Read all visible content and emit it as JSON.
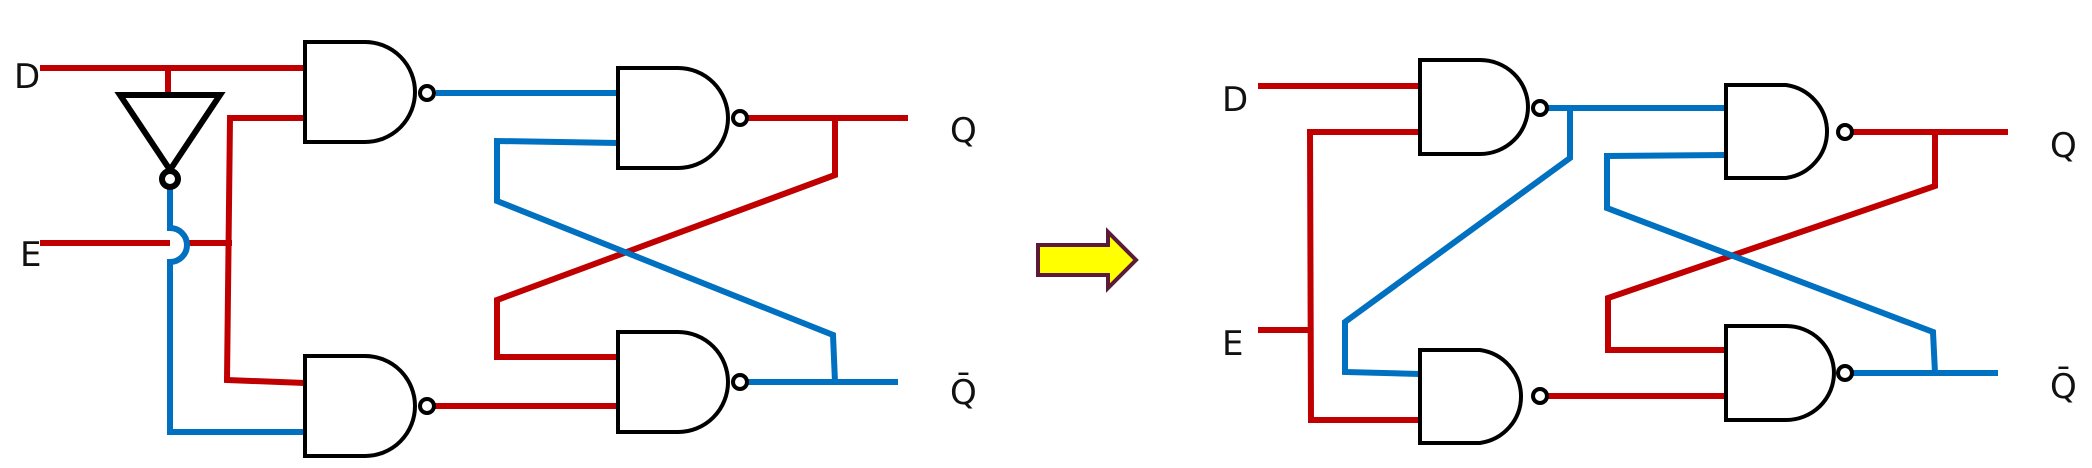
{
  "colors": {
    "red": "#c00000",
    "blue": "#0070c0",
    "black": "#000000",
    "arrow_fill": "#ffff00",
    "arrow_stroke": "#5b1a38"
  },
  "left_circuit": {
    "labels": {
      "d": "D",
      "e": "E",
      "q": "Q",
      "q_bar": "Q̄"
    }
  },
  "right_circuit": {
    "labels": {
      "d": "D",
      "e": "E",
      "q": "Q",
      "q_bar": "Q̄"
    }
  }
}
